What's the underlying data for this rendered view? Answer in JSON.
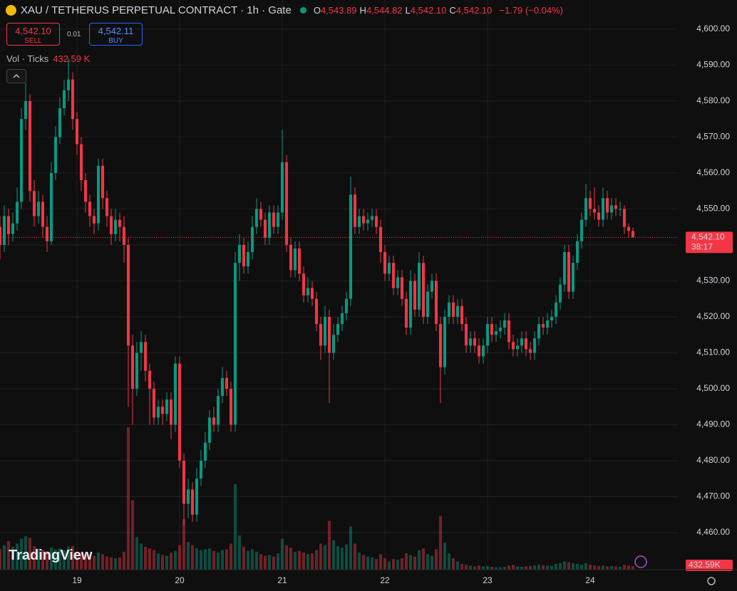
{
  "chart_data": {
    "type": "candlestick",
    "title": "XAU / TETHERUS PERPETUAL CONTRACT · 1h · Gate",
    "legend": [
      {
        "key": "O",
        "value": "4,543.89"
      },
      {
        "key": "H",
        "value": "4,544.82"
      },
      {
        "key": "L",
        "value": "4,542.10"
      },
      {
        "key": "C",
        "value": "4,542.10"
      }
    ],
    "change": "−1.79 (−0.04%)",
    "sell_price": "4,542.10",
    "sell_label": "SELL",
    "spread": "0.01",
    "buy_price": "4,542.11",
    "buy_label": "BUY",
    "volume_title": "Vol · Ticks",
    "volume_value": "432.59 K",
    "last_price_label": "4,542.10",
    "countdown": "38:17",
    "volume_last_label": "432.59K",
    "logo": "TradingView",
    "up_color": "#089981",
    "down_color": "#f23645",
    "xlim": [
      0,
      158.5
    ],
    "xticks": [
      {
        "value": 18,
        "label": "19"
      },
      {
        "value": 42,
        "label": "20"
      },
      {
        "value": 66,
        "label": "21"
      },
      {
        "value": 90,
        "label": "22"
      },
      {
        "value": 114,
        "label": "23"
      },
      {
        "value": 138,
        "label": "24"
      }
    ],
    "ylim": [
      4449.7,
      4608.1
    ],
    "yticks": [
      {
        "value": 4460,
        "label": "4,460.00"
      },
      {
        "value": 4470,
        "label": "4,470.00"
      },
      {
        "value": 4480,
        "label": "4,480.00"
      },
      {
        "value": 4490,
        "label": "4,490.00"
      },
      {
        "value": 4500,
        "label": "4,500.00"
      },
      {
        "value": 4510,
        "label": "4,510.00"
      },
      {
        "value": 4520,
        "label": "4,520.00"
      },
      {
        "value": 4530,
        "label": "4,530.00"
      },
      {
        "value": 4540,
        "label": "4,540.00"
      },
      {
        "value": 4550,
        "label": "4,550.00"
      },
      {
        "value": 4560,
        "label": "4,560.00"
      },
      {
        "value": 4570,
        "label": "4,570.00"
      },
      {
        "value": 4580,
        "label": "4,580.00"
      },
      {
        "value": 4590,
        "label": "4,590.00"
      },
      {
        "value": 4600,
        "label": "4,600.00"
      }
    ],
    "vlim": [
      0,
      70000
    ],
    "grid": true,
    "ohlcv": [
      [
        4545,
        4548,
        4536,
        4540,
        2500
      ],
      [
        4540,
        4551,
        4538,
        4548,
        3000
      ],
      [
        4548,
        4550,
        4540,
        4543,
        3500
      ],
      [
        4543,
        4549,
        4541,
        4546,
        2800
      ],
      [
        4546,
        4556,
        4544,
        4552,
        3200
      ],
      [
        4552,
        4578,
        4550,
        4575,
        3800
      ],
      [
        4575,
        4585,
        4572,
        4580,
        4100
      ],
      [
        4580,
        4582,
        4552,
        4555,
        3900
      ],
      [
        4555,
        4558,
        4545,
        4548,
        2900
      ],
      [
        4548,
        4555,
        4546,
        4552,
        2600
      ],
      [
        4552,
        4554,
        4542,
        4545,
        2400
      ],
      [
        4545,
        4548,
        4538,
        4541,
        2300
      ],
      [
        4541,
        4563,
        4540,
        4560,
        2700
      ],
      [
        4560,
        4573,
        4558,
        4570,
        2500
      ],
      [
        4570,
        4581,
        4568,
        4578,
        2600
      ],
      [
        4578,
        4586,
        4576,
        4583,
        2400
      ],
      [
        4583,
        4592,
        4580,
        4586,
        2800
      ],
      [
        4586,
        4588,
        4572,
        4575,
        2900
      ],
      [
        4575,
        4577,
        4565,
        4568,
        2200
      ],
      [
        4568,
        4570,
        4555,
        4558,
        2000
      ],
      [
        4558,
        4560,
        4549,
        4552,
        1900
      ],
      [
        4552,
        4554,
        4545,
        4548,
        1800
      ],
      [
        4548,
        4550,
        4543,
        4546,
        1700
      ],
      [
        4546,
        4564,
        4544,
        4562,
        2100
      ],
      [
        4562,
        4564,
        4550,
        4553,
        1900
      ],
      [
        4553,
        4555,
        4545,
        4548,
        1600
      ],
      [
        4548,
        4550,
        4540,
        4543,
        1500
      ],
      [
        4543,
        4550,
        4541,
        4547,
        1400
      ],
      [
        4547,
        4549,
        4541,
        4545,
        1500
      ],
      [
        4545,
        4548,
        4535,
        4540,
        2200
      ],
      [
        4540,
        4542,
        4495,
        4512,
        17500
      ],
      [
        4512,
        4515,
        4490,
        4500,
        8500
      ],
      [
        4500,
        4513,
        4498,
        4510,
        4000
      ],
      [
        4510,
        4516,
        4505,
        4513,
        3200
      ],
      [
        4513,
        4515,
        4502,
        4505,
        2800
      ],
      [
        4505,
        4507,
        4490,
        4500,
        2600
      ],
      [
        4500,
        4502,
        4490,
        4492,
        2400
      ],
      [
        4492,
        4497,
        4490,
        4495,
        2000
      ],
      [
        4495,
        4497,
        4490,
        4493,
        1800
      ],
      [
        4493,
        4499,
        4491,
        4497,
        1700
      ],
      [
        4497,
        4499,
        4486,
        4490,
        2100
      ],
      [
        4490,
        4509,
        4488,
        4507,
        2300
      ],
      [
        4507,
        4509,
        4478,
        4480,
        3000
      ],
      [
        4480,
        4482,
        4462,
        4468,
        6200
      ],
      [
        4468,
        4475,
        4464,
        4472,
        3400
      ],
      [
        4472,
        4474,
        4463,
        4465,
        3000
      ],
      [
        4465,
        4478,
        4463,
        4475,
        2600
      ],
      [
        4475,
        4483,
        4473,
        4480,
        2400
      ],
      [
        4480,
        4488,
        4478,
        4485,
        2500
      ],
      [
        4485,
        4494,
        4483,
        4492,
        2600
      ],
      [
        4492,
        4495,
        4488,
        4490,
        2300
      ],
      [
        4490,
        4500,
        4488,
        4498,
        2100
      ],
      [
        4498,
        4506,
        4496,
        4503,
        2400
      ],
      [
        4503,
        4505,
        4498,
        4500,
        2500
      ],
      [
        4500,
        4502,
        4488,
        4490,
        3200
      ],
      [
        4490,
        4538,
        4488,
        4535,
        10500
      ],
      [
        4535,
        4543,
        4530,
        4540,
        4200
      ],
      [
        4540,
        4542,
        4532,
        4534,
        2800
      ],
      [
        4534,
        4541,
        4532,
        4538,
        2300
      ],
      [
        4538,
        4548,
        4536,
        4545,
        2500
      ],
      [
        4545,
        4553,
        4543,
        4550,
        2200
      ],
      [
        4550,
        4552,
        4545,
        4547,
        1900
      ],
      [
        4547,
        4549,
        4540,
        4542,
        1700
      ],
      [
        4542,
        4551,
        4540,
        4549,
        1800
      ],
      [
        4549,
        4551,
        4543,
        4545,
        1600
      ],
      [
        4545,
        4551,
        4543,
        4549,
        2000
      ],
      [
        4549,
        4572,
        4547,
        4563,
        3800
      ],
      [
        4563,
        4565,
        4538,
        4540,
        3000
      ],
      [
        4540,
        4542,
        4531,
        4533,
        2700
      ],
      [
        4533,
        4541,
        4531,
        4539,
        2200
      ],
      [
        4539,
        4541,
        4530,
        4532,
        2300
      ],
      [
        4532,
        4534,
        4524,
        4526,
        2100
      ],
      [
        4526,
        4531,
        4524,
        4528,
        1900
      ],
      [
        4528,
        4530,
        4523,
        4525,
        2000
      ],
      [
        4525,
        4527,
        4516,
        4518,
        2400
      ],
      [
        4518,
        4520,
        4508,
        4512,
        3200
      ],
      [
        4512,
        4523,
        4510,
        4520,
        3000
      ],
      [
        4520,
        4522,
        4496,
        4510,
        6000
      ],
      [
        4510,
        4518,
        4508,
        4515,
        3600
      ],
      [
        4515,
        4520,
        4513,
        4518,
        2900
      ],
      [
        4518,
        4523,
        4516,
        4521,
        2700
      ],
      [
        4521,
        4527,
        4519,
        4525,
        3100
      ],
      [
        4525,
        4559,
        4523,
        4554,
        5300
      ],
      [
        4554,
        4556,
        4543,
        4545,
        3200
      ],
      [
        4545,
        4550,
        4543,
        4548,
        2100
      ],
      [
        4548,
        4550,
        4544,
        4546,
        1800
      ],
      [
        4546,
        4549,
        4544,
        4547,
        1600
      ],
      [
        4547,
        4550,
        4545,
        4548,
        1500
      ],
      [
        4548,
        4550,
        4543,
        4545,
        1300
      ],
      [
        4545,
        4547,
        4535,
        4538,
        1900
      ],
      [
        4538,
        4540,
        4530,
        4532,
        1400
      ],
      [
        4532,
        4537,
        4530,
        4535,
        1000
      ],
      [
        4535,
        4537,
        4526,
        4528,
        1300
      ],
      [
        4528,
        4533,
        4526,
        4531,
        1200
      ],
      [
        4531,
        4533,
        4523,
        4525,
        1400
      ],
      [
        4525,
        4527,
        4515,
        4517,
        2000
      ],
      [
        4517,
        4533,
        4515,
        4530,
        1800
      ],
      [
        4530,
        4532,
        4520,
        4522,
        1600
      ],
      [
        4522,
        4538,
        4520,
        4535,
        2400
      ],
      [
        4535,
        4537,
        4518,
        4520,
        2600
      ],
      [
        4520,
        4529,
        4518,
        4527,
        1900
      ],
      [
        4527,
        4532,
        4525,
        4530,
        1700
      ],
      [
        4530,
        4532,
        4516,
        4518,
        2500
      ],
      [
        4518,
        4520,
        4496,
        4506,
        6600
      ],
      [
        4506,
        4522,
        4504,
        4520,
        3300
      ],
      [
        4520,
        4526,
        4518,
        4524,
        2000
      ],
      [
        4524,
        4526,
        4518,
        4520,
        1400
      ],
      [
        4520,
        4525,
        4518,
        4523,
        1000
      ],
      [
        4523,
        4525,
        4516,
        4518,
        700
      ],
      [
        4518,
        4520,
        4510,
        4512,
        600
      ],
      [
        4512,
        4516,
        4510,
        4514,
        500
      ],
      [
        4514,
        4516,
        4510,
        4512,
        400
      ],
      [
        4512,
        4514,
        4507,
        4509,
        500
      ],
      [
        4509,
        4514,
        4507,
        4512,
        400
      ],
      [
        4512,
        4520,
        4510,
        4518,
        450
      ],
      [
        4518,
        4520,
        4513,
        4515,
        350
      ],
      [
        4515,
        4518,
        4513,
        4516,
        300
      ],
      [
        4516,
        4519,
        4514,
        4517,
        300
      ],
      [
        4517,
        4521,
        4515,
        4519,
        350
      ],
      [
        4519,
        4521,
        4511,
        4513,
        500
      ],
      [
        4513,
        4515,
        4509,
        4511,
        600
      ],
      [
        4511,
        4514,
        4509,
        4512,
        400
      ],
      [
        4512,
        4516,
        4510,
        4514,
        350
      ],
      [
        4514,
        4516,
        4509,
        4511,
        400
      ],
      [
        4511,
        4513,
        4508,
        4510,
        450
      ],
      [
        4510,
        4516,
        4508,
        4514,
        500
      ],
      [
        4514,
        4520,
        4512,
        4518,
        600
      ],
      [
        4518,
        4520,
        4515,
        4517,
        550
      ],
      [
        4517,
        4521,
        4515,
        4519,
        500
      ],
      [
        4519,
        4522,
        4517,
        4520,
        450
      ],
      [
        4520,
        4526,
        4518,
        4524,
        700
      ],
      [
        4524,
        4531,
        4522,
        4529,
        800
      ],
      [
        4529,
        4540,
        4527,
        4538,
        1000
      ],
      [
        4538,
        4540,
        4525,
        4527,
        900
      ],
      [
        4527,
        4537,
        4525,
        4535,
        800
      ],
      [
        4535,
        4543,
        4533,
        4541,
        700
      ],
      [
        4541,
        4549,
        4539,
        4547,
        600
      ],
      [
        4547,
        4557,
        4545,
        4553,
        800
      ],
      [
        4553,
        4555,
        4548,
        4550,
        600
      ],
      [
        4550,
        4556,
        4547,
        4549,
        500
      ],
      [
        4549,
        4551,
        4545,
        4547,
        450
      ],
      [
        4547,
        4556,
        4545,
        4553,
        500
      ],
      [
        4553,
        4555,
        4547,
        4549,
        400
      ],
      [
        4549,
        4553,
        4547,
        4551,
        450
      ],
      [
        4551,
        4553,
        4548,
        4550,
        400
      ],
      [
        4550,
        4552,
        4548,
        4550,
        350
      ],
      [
        4550,
        4551,
        4543,
        4545,
        600
      ],
      [
        4545,
        4546,
        4542,
        4543.89,
        500
      ],
      [
        4543.89,
        4544.82,
        4542.1,
        4542.1,
        432.59
      ]
    ]
  }
}
